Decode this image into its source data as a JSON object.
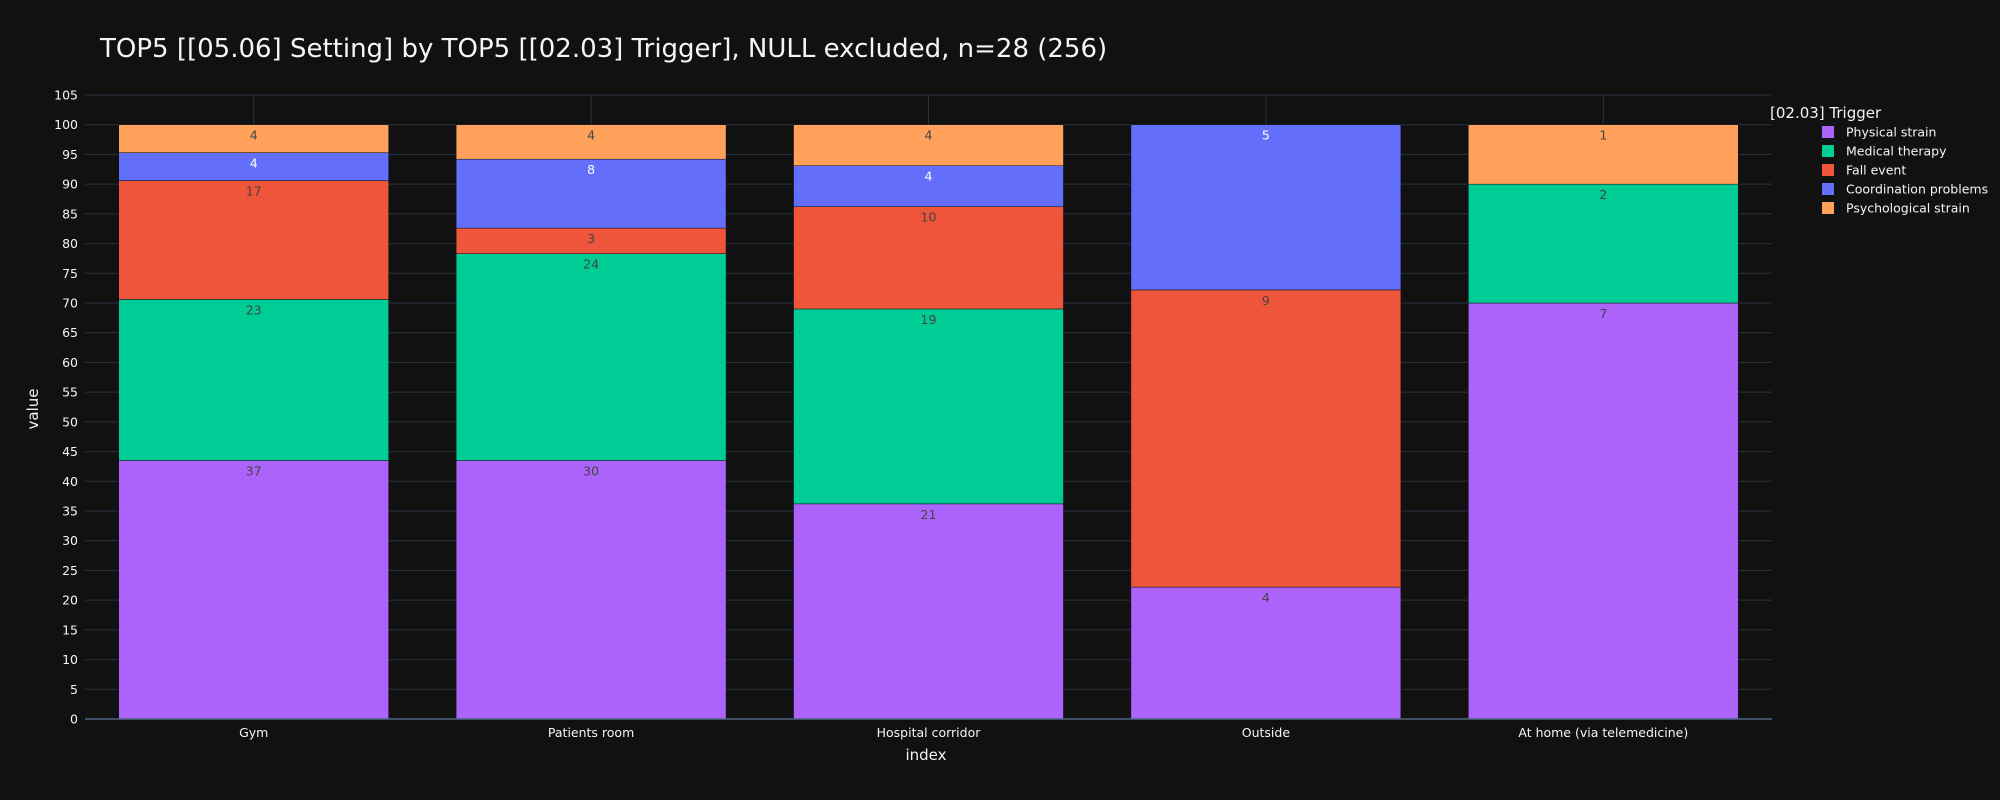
{
  "chart_data": {
    "type": "bar",
    "stacked": true,
    "title": "TOP5 [[05.06] Setting] by TOP5 [[02.03] Trigger], NULL excluded, n=28 (256)",
    "xlabel": "index",
    "ylabel": "value",
    "ylim": [
      0,
      105
    ],
    "yticks": [
      0,
      5,
      10,
      15,
      20,
      25,
      30,
      35,
      40,
      45,
      50,
      55,
      60,
      65,
      70,
      75,
      80,
      85,
      90,
      95,
      100,
      105
    ],
    "grid": true,
    "legend_title": "[02.03] Trigger",
    "legend_position": "top-right",
    "categories": [
      "Gym",
      "Patients room",
      "Hospital corridor",
      "Outside",
      "At home (via telemedicine)"
    ],
    "series": [
      {
        "name": "Physical strain",
        "color": "#ab63fa",
        "label_color": "#444444",
        "values": [
          43.5,
          43.5,
          36.2,
          22.2,
          70.0
        ],
        "labels": [
          "37",
          "30",
          "21",
          "4",
          "7"
        ]
      },
      {
        "name": "Medical therapy",
        "color": "#00cc96",
        "label_color": "#444444",
        "values": [
          27.1,
          34.8,
          32.8,
          0,
          20.0
        ],
        "labels": [
          "23",
          "24",
          "19",
          "",
          "2"
        ]
      },
      {
        "name": "Fall event",
        "color": "#ef553b",
        "label_color": "#444444",
        "values": [
          20.0,
          4.3,
          17.2,
          50.0,
          0
        ],
        "labels": [
          "17",
          "3",
          "10",
          "9",
          ""
        ]
      },
      {
        "name": "Coordination problems",
        "color": "#636efa",
        "label_color": "#ffffff",
        "values": [
          4.7,
          11.6,
          6.9,
          27.8,
          0
        ],
        "labels": [
          "4",
          "8",
          "4",
          "5",
          ""
        ]
      },
      {
        "name": "Psychological strain",
        "color": "#ffa15a",
        "label_color": "#444444",
        "values": [
          4.7,
          5.8,
          6.9,
          0,
          10.0
        ],
        "labels": [
          "4",
          "4",
          "4",
          "",
          "1"
        ]
      }
    ]
  }
}
